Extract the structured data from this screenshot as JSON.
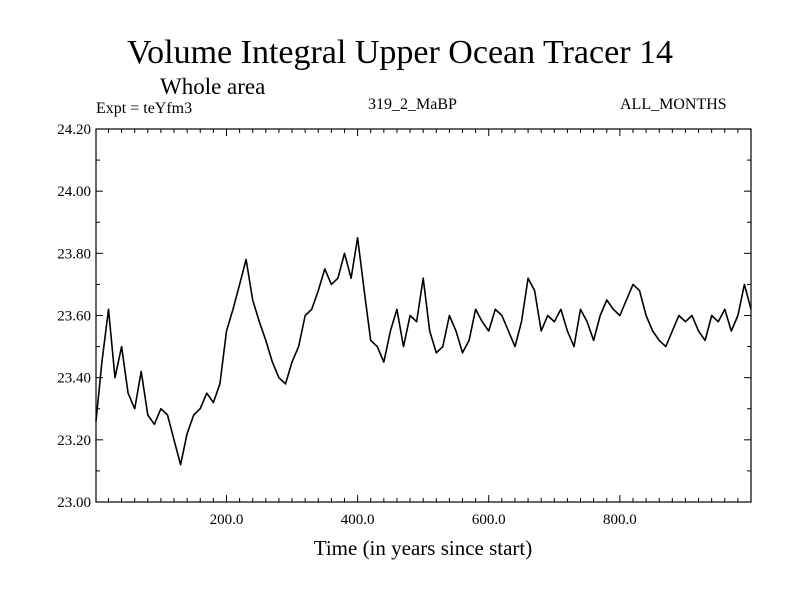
{
  "chart_data": {
    "type": "line",
    "title": "Volume Integral Upper Ocean Tracer 14",
    "subtitle": "Whole area",
    "expt": "Expt = teYfm3",
    "run": "319_2_MaBP",
    "months": "ALL_MONTHS",
    "xlabel": "Time (in years since start)",
    "ylabel": "",
    "xlim": [
      1,
      1000
    ],
    "ylim": [
      23.0,
      24.2
    ],
    "xticks": [
      200,
      400,
      600,
      800
    ],
    "xtick_labels": [
      "200.0",
      "400.0",
      "600.0",
      "800.0"
    ],
    "yticks": [
      23.0,
      23.2,
      23.4,
      23.6,
      23.8,
      24.0,
      24.2
    ],
    "ytick_labels": [
      "23.00",
      "23.20",
      "23.40",
      "23.60",
      "23.80",
      "24.00",
      "24.20"
    ],
    "grid": false,
    "series": [
      {
        "name": "Volume Integral Upper Ocean Tracer 14",
        "x": [
          1,
          10,
          20,
          30,
          40,
          50,
          60,
          70,
          80,
          90,
          100,
          110,
          120,
          130,
          140,
          150,
          160,
          170,
          180,
          190,
          200,
          210,
          220,
          230,
          240,
          250,
          260,
          270,
          280,
          290,
          300,
          310,
          320,
          330,
          340,
          350,
          360,
          370,
          380,
          390,
          400,
          410,
          420,
          430,
          440,
          450,
          460,
          470,
          480,
          490,
          500,
          510,
          520,
          530,
          540,
          550,
          560,
          570,
          580,
          590,
          600,
          610,
          620,
          630,
          640,
          650,
          660,
          670,
          680,
          690,
          700,
          710,
          720,
          730,
          740,
          750,
          760,
          770,
          780,
          790,
          800,
          810,
          820,
          830,
          840,
          850,
          860,
          870,
          880,
          890,
          900,
          910,
          920,
          930,
          940,
          950,
          960,
          970,
          980,
          990,
          1000
        ],
        "values": [
          23.26,
          23.45,
          23.62,
          23.4,
          23.5,
          23.35,
          23.3,
          23.42,
          23.28,
          23.25,
          23.3,
          23.28,
          23.2,
          23.12,
          23.22,
          23.28,
          23.3,
          23.35,
          23.32,
          23.38,
          23.55,
          23.62,
          23.7,
          23.78,
          23.65,
          23.58,
          23.52,
          23.45,
          23.4,
          23.38,
          23.45,
          23.5,
          23.6,
          23.62,
          23.68,
          23.75,
          23.7,
          23.72,
          23.8,
          23.72,
          23.85,
          23.68,
          23.52,
          23.5,
          23.45,
          23.55,
          23.62,
          23.5,
          23.6,
          23.58,
          23.72,
          23.55,
          23.48,
          23.5,
          23.6,
          23.55,
          23.48,
          23.52,
          23.62,
          23.58,
          23.55,
          23.62,
          23.6,
          23.55,
          23.5,
          23.58,
          23.72,
          23.68,
          23.55,
          23.6,
          23.58,
          23.62,
          23.55,
          23.5,
          23.62,
          23.58,
          23.52,
          23.6,
          23.65,
          23.62,
          23.6,
          23.65,
          23.7,
          23.68,
          23.6,
          23.55,
          23.52,
          23.5,
          23.55,
          23.6,
          23.58,
          23.6,
          23.55,
          23.52,
          23.6,
          23.58,
          23.62,
          23.55,
          23.6,
          23.7,
          23.62
        ]
      }
    ]
  }
}
